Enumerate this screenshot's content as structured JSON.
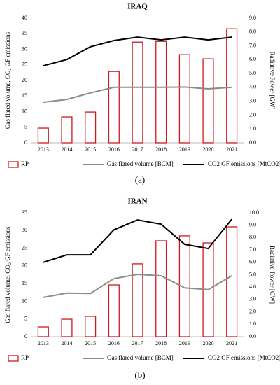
{
  "charts": [
    {
      "type": "bar",
      "title": "IRAQ",
      "caption": "(a)",
      "y_label": "Gas flared volume, CO₂ GF emissions",
      "y2_label": "Radiative Power [GW]",
      "categories": [
        "2013",
        "2014",
        "2015",
        "2016",
        "2017",
        "2018",
        "2019",
        "2020",
        "2021"
      ],
      "ylim": [
        0,
        40
      ],
      "yticks": [
        0,
        5,
        10,
        15,
        20,
        25,
        30,
        35,
        40
      ],
      "y2lim": [
        0,
        9
      ],
      "y2ticks": [
        {
          "value": 0,
          "label": "0.0"
        },
        {
          "value": 1,
          "label": "1.0"
        },
        {
          "value": 2,
          "label": "2.0"
        },
        {
          "value": 3,
          "label": "3.0"
        },
        {
          "value": 4,
          "label": "4.0"
        },
        {
          "value": 5,
          "label": "5.0"
        },
        {
          "value": 6,
          "label": "6.0"
        },
        {
          "value": 7,
          "label": "7.0"
        },
        {
          "value": 8,
          "label": "8.0"
        },
        {
          "value": 9,
          "label": "9.0"
        }
      ],
      "series": [
        {
          "name": "RP",
          "type": "bar",
          "axis": "y2",
          "color": "#d0191f",
          "values": [
            1.06,
            1.87,
            2.22,
            5.15,
            7.27,
            7.32,
            6.36,
            6.06,
            8.23
          ]
        },
        {
          "name": "Gas flared volume [BCM]",
          "type": "line",
          "color": "#8c8c8c",
          "values": [
            13.0,
            13.9,
            16.0,
            17.8,
            17.8,
            17.8,
            17.9,
            17.3,
            17.8
          ]
        },
        {
          "name": "CO2 GF emissions [MtCO2]",
          "type": "line",
          "color": "#000000",
          "values": [
            24.7,
            26.7,
            30.8,
            32.8,
            33.9,
            33.0,
            33.9,
            33.0,
            33.9
          ]
        }
      ]
    },
    {
      "type": "bar",
      "title": "IRAN",
      "caption": "(b)",
      "y_label": "Gas flared volume, CO₂ GF emissions",
      "y2_label": "Radiative Power [GW]",
      "categories": [
        "2013",
        "2014",
        "2015",
        "2016",
        "2017",
        "2018",
        "2019",
        "2020",
        "2021"
      ],
      "ylim": [
        0,
        35
      ],
      "yticks": [
        0,
        5,
        10,
        15,
        20,
        25,
        30,
        35
      ],
      "y2lim": [
        0,
        10
      ],
      "y2ticks": [
        {
          "value": 0,
          "label": "0.0"
        },
        {
          "value": 1,
          "label": "1.0"
        },
        {
          "value": 2,
          "label": "2.0"
        },
        {
          "value": 3,
          "label": "3.0"
        },
        {
          "value": 4,
          "label": "4.0"
        },
        {
          "value": 5,
          "label": "5.0"
        },
        {
          "value": 6,
          "label": "6.0"
        },
        {
          "value": 7,
          "label": "7.0"
        },
        {
          "value": 8,
          "label": "8.0"
        },
        {
          "value": 9,
          "label": "9.0"
        },
        {
          "value": 10,
          "label": "10.0"
        }
      ],
      "series": [
        {
          "name": "RP",
          "type": "bar",
          "axis": "y2",
          "color": "#d0191f",
          "values": [
            0.79,
            1.41,
            1.64,
            4.18,
            5.88,
            7.74,
            8.14,
            7.57,
            8.87
          ]
        },
        {
          "name": "Gas flared volume [BCM]",
          "type": "line",
          "color": "#8c8c8c",
          "values": [
            11.1,
            12.3,
            12.2,
            16.4,
            17.6,
            17.2,
            13.8,
            13.3,
            17.2
          ]
        },
        {
          "name": "CO2 GF emissions [MtCO2]",
          "type": "line",
          "color": "#000000",
          "values": [
            21.0,
            23.1,
            23.1,
            30.2,
            33.0,
            31.8,
            26.1,
            24.9,
            33.2
          ]
        }
      ]
    }
  ]
}
